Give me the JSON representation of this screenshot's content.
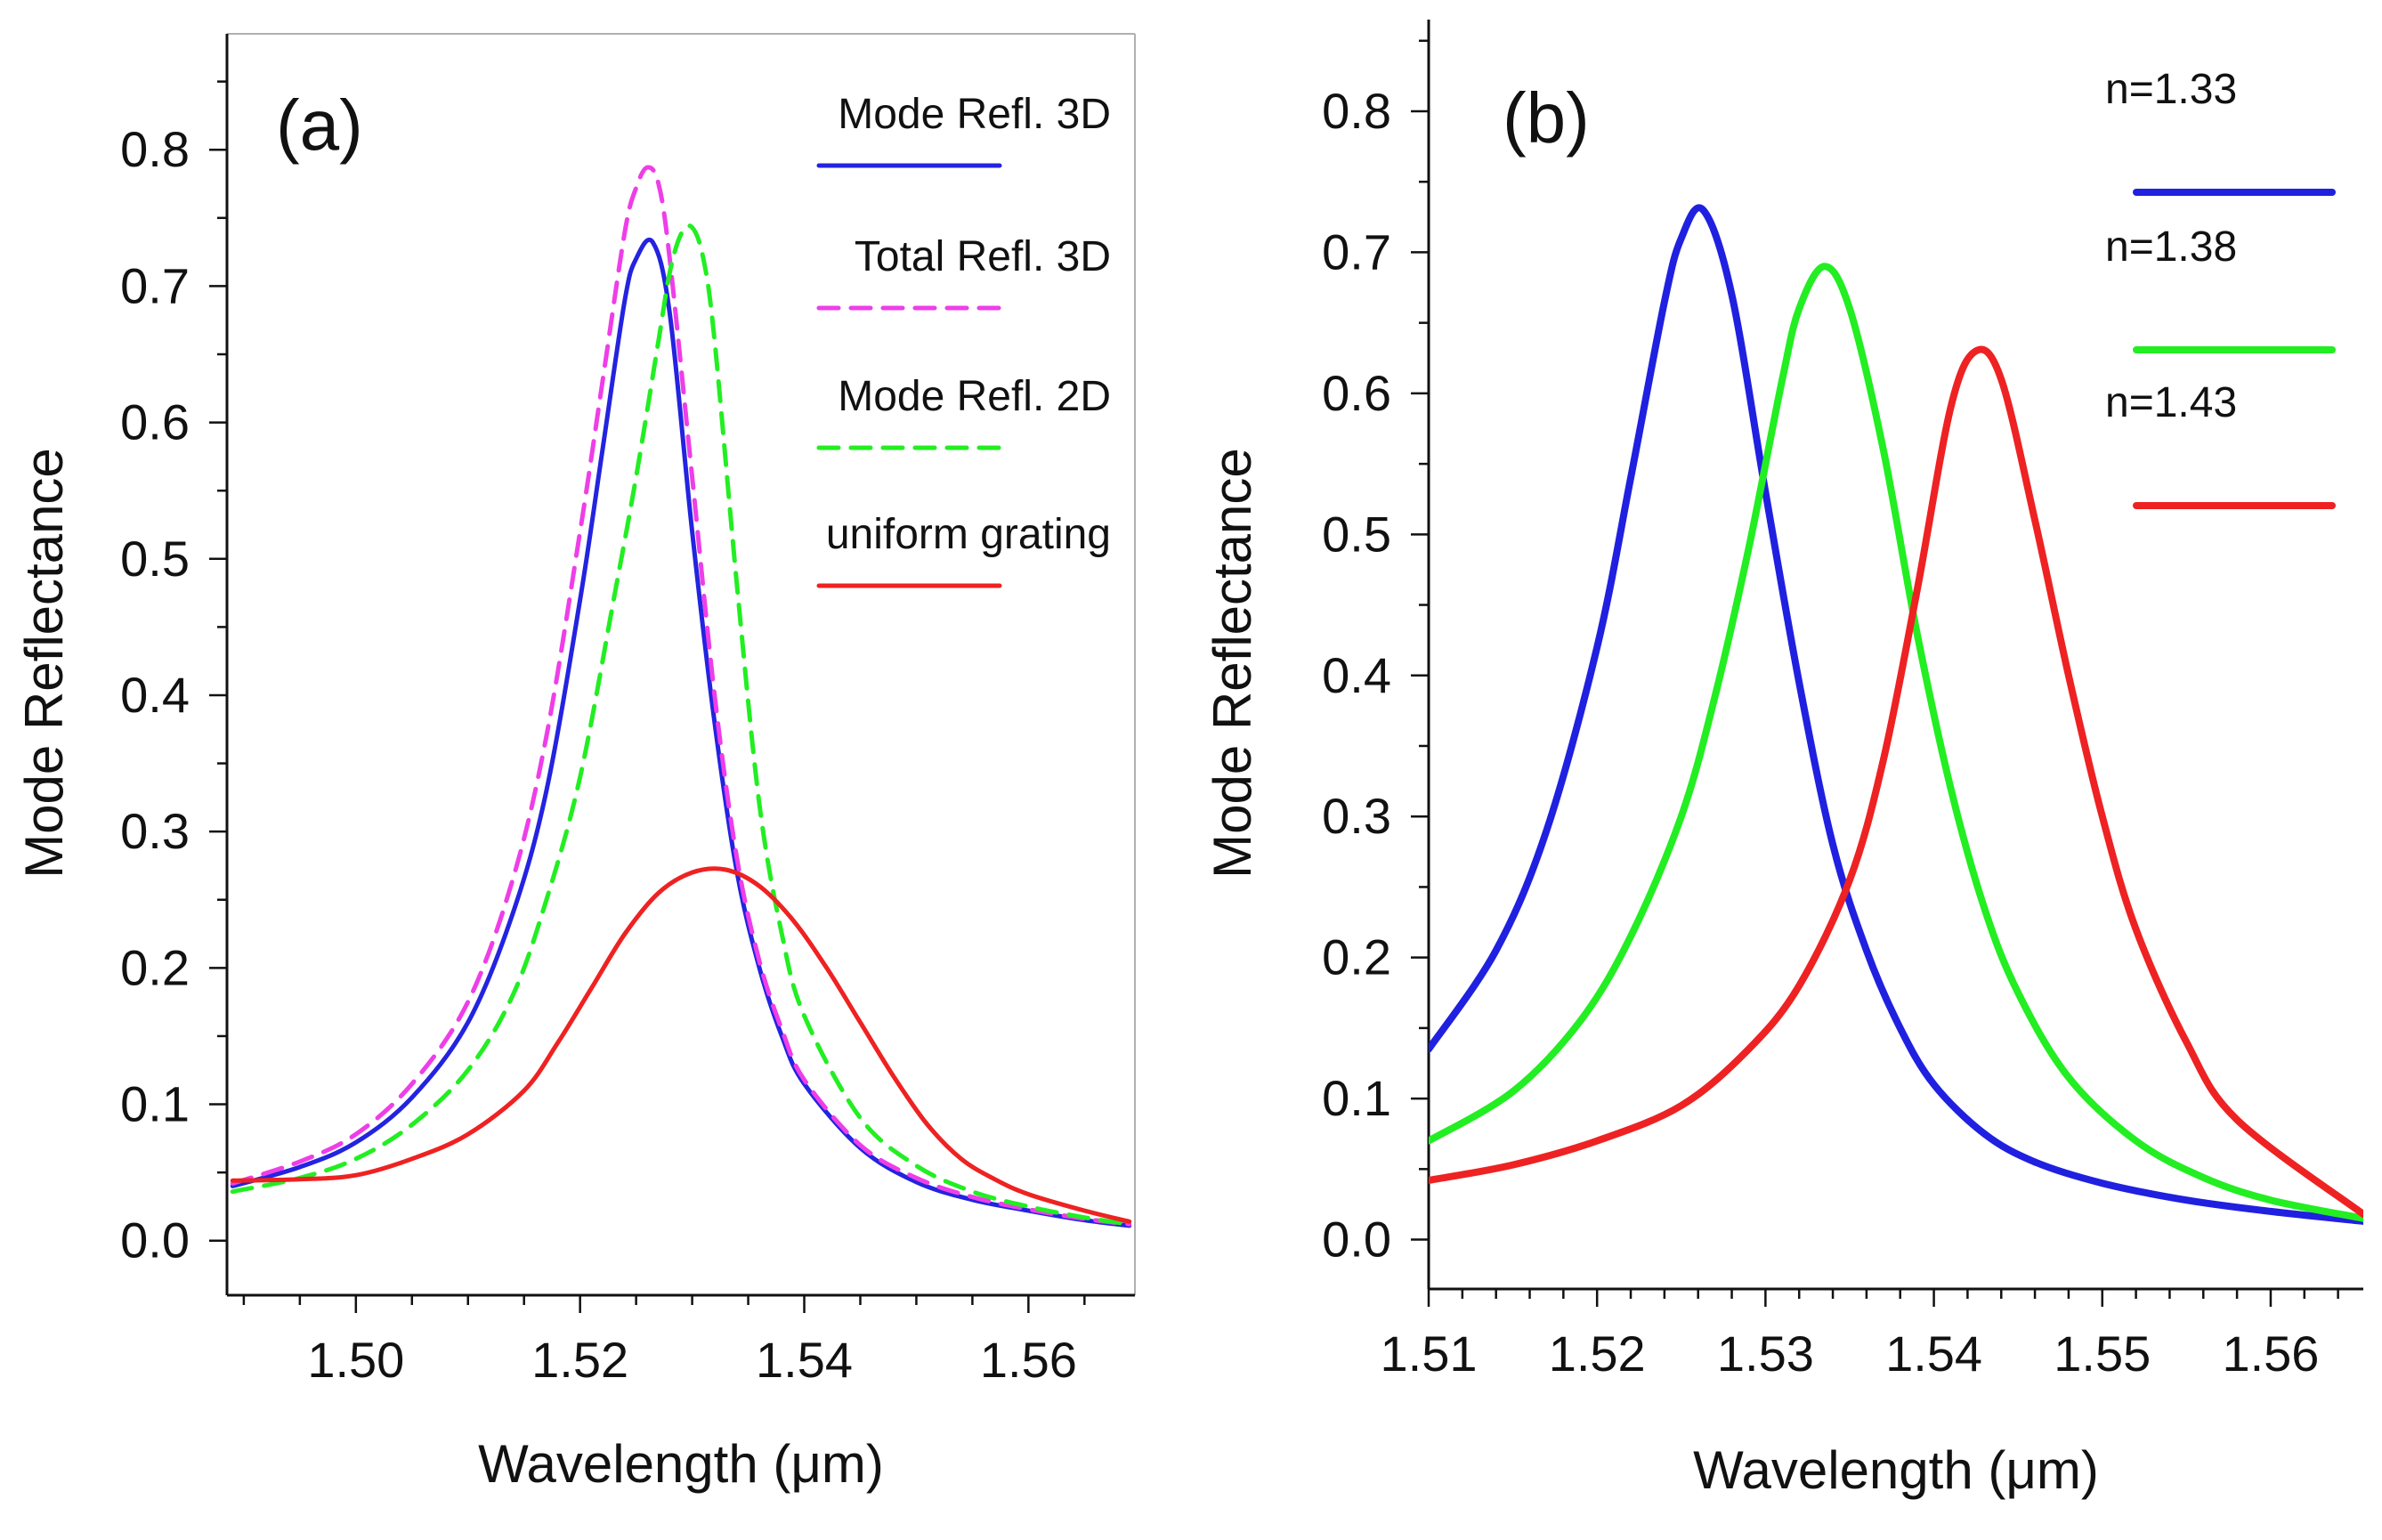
{
  "chart_data": [
    {
      "type": "line",
      "panel_label": "(a)",
      "xlabel": "Wavelength (μm)",
      "ylabel": "Mode Reflectance",
      "xlim": [
        1.4885,
        1.5695
      ],
      "ylim": [
        -0.04,
        0.885
      ],
      "xticks": [
        1.5,
        1.52,
        1.54,
        1.56
      ],
      "xtick_labels": [
        "1.50",
        "1.52",
        "1.54",
        "1.56"
      ],
      "xminor_step": 0.005,
      "yticks": [
        0.0,
        0.1,
        0.2,
        0.3,
        0.4,
        0.5,
        0.6,
        0.7,
        0.8
      ],
      "ytick_labels": [
        "0.0",
        "0.1",
        "0.2",
        "0.3",
        "0.4",
        "0.5",
        "0.6",
        "0.7",
        "0.8"
      ],
      "yminor_step": 0.05,
      "grid": false,
      "legend_position": "top-right",
      "series": [
        {
          "name": "Mode Refl. 3D",
          "color": "#2323e0",
          "dash": "solid",
          "x": [
            1.489,
            1.495,
            1.5,
            1.505,
            1.51,
            1.514,
            1.517,
            1.52,
            1.522,
            1.524,
            1.525,
            1.5265,
            1.528,
            1.53,
            1.532,
            1.534,
            1.536,
            1.538,
            1.54,
            1.545,
            1.55,
            1.555,
            1.56,
            1.565,
            1.569
          ],
          "y": [
            0.04,
            0.054,
            0.072,
            0.105,
            0.16,
            0.24,
            0.33,
            0.47,
            0.58,
            0.69,
            0.72,
            0.732,
            0.68,
            0.52,
            0.38,
            0.27,
            0.2,
            0.15,
            0.115,
            0.068,
            0.043,
            0.03,
            0.022,
            0.015,
            0.011
          ]
        },
        {
          "name": "Total Refl. 3D",
          "color": "#ee3ee8",
          "dash": "dashed",
          "x": [
            1.489,
            1.495,
            1.5,
            1.505,
            1.51,
            1.514,
            1.517,
            1.52,
            1.522,
            1.524,
            1.525,
            1.526,
            1.527,
            1.528,
            1.53,
            1.532,
            1.534,
            1.536,
            1.538,
            1.54,
            1.545,
            1.55,
            1.555,
            1.56,
            1.565,
            1.569
          ],
          "y": [
            0.042,
            0.058,
            0.078,
            0.115,
            0.175,
            0.265,
            0.37,
            0.52,
            0.63,
            0.74,
            0.772,
            0.787,
            0.775,
            0.72,
            0.56,
            0.4,
            0.28,
            0.205,
            0.155,
            0.118,
            0.07,
            0.046,
            0.032,
            0.023,
            0.016,
            0.012
          ]
        },
        {
          "name": "Mode Refl. 2D",
          "color": "#22ee22",
          "dash": "dashed",
          "x": [
            1.489,
            1.495,
            1.5,
            1.505,
            1.51,
            1.514,
            1.517,
            1.52,
            1.523,
            1.525,
            1.527,
            1.528,
            1.529,
            1.53,
            1.531,
            1.532,
            1.534,
            1.536,
            1.538,
            1.54,
            1.545,
            1.55,
            1.555,
            1.56,
            1.565,
            1.569
          ],
          "y": [
            0.036,
            0.046,
            0.06,
            0.085,
            0.125,
            0.18,
            0.25,
            0.34,
            0.47,
            0.56,
            0.66,
            0.71,
            0.738,
            0.743,
            0.72,
            0.66,
            0.48,
            0.32,
            0.225,
            0.165,
            0.09,
            0.055,
            0.036,
            0.025,
            0.017,
            0.012
          ]
        },
        {
          "name": "uniform grating",
          "color": "#ee2222",
          "dash": "solid",
          "x": [
            1.489,
            1.495,
            1.5,
            1.505,
            1.51,
            1.515,
            1.518,
            1.521,
            1.524,
            1.527,
            1.53,
            1.533,
            1.536,
            1.539,
            1.542,
            1.545,
            1.548,
            1.551,
            1.554,
            1.557,
            1.56,
            1.565,
            1.569
          ],
          "y": [
            0.044,
            0.045,
            0.048,
            0.06,
            0.078,
            0.11,
            0.145,
            0.185,
            0.225,
            0.255,
            0.27,
            0.272,
            0.26,
            0.235,
            0.2,
            0.16,
            0.12,
            0.085,
            0.06,
            0.045,
            0.034,
            0.022,
            0.014
          ]
        }
      ]
    },
    {
      "type": "line",
      "panel_label": "(b)",
      "xlabel": "Wavelength (μm)",
      "ylabel": "Mode Reflectance",
      "xlim": [
        1.51,
        1.5655
      ],
      "ylim": [
        -0.035,
        0.865
      ],
      "xticks": [
        1.51,
        1.52,
        1.53,
        1.54,
        1.55,
        1.56
      ],
      "xtick_labels": [
        "1.51",
        "1.52",
        "1.53",
        "1.54",
        "1.55",
        "1.56"
      ],
      "xminor_step": 0.002,
      "yticks": [
        0.0,
        0.1,
        0.2,
        0.3,
        0.4,
        0.5,
        0.6,
        0.7,
        0.8
      ],
      "ytick_labels": [
        "0.0",
        "0.1",
        "0.2",
        "0.3",
        "0.4",
        "0.5",
        "0.6",
        "0.7",
        "0.8"
      ],
      "yminor_step": 0.05,
      "grid": false,
      "legend_position": "top-right",
      "series": [
        {
          "name": "n=1.33",
          "color": "#2020e0",
          "dash": "solid",
          "peak_wavelength": 1.5263,
          "peak_value": 0.73,
          "half_width": 0.0044,
          "x": [
            1.51,
            1.514,
            1.517,
            1.52,
            1.522,
            1.524,
            1.525,
            1.5263,
            1.528,
            1.53,
            1.532,
            1.534,
            1.536,
            1.538,
            1.54,
            1.543,
            1.546,
            1.55,
            1.555,
            1.56,
            1.5655
          ],
          "y": [
            0.135,
            0.205,
            0.29,
            0.42,
            0.54,
            0.665,
            0.71,
            0.73,
            0.67,
            0.53,
            0.395,
            0.28,
            0.205,
            0.15,
            0.11,
            0.075,
            0.055,
            0.04,
            0.028,
            0.02,
            0.013
          ]
        },
        {
          "name": "n=1.38",
          "color": "#22ee22",
          "dash": "solid",
          "peak_wavelength": 1.5335,
          "peak_value": 0.69,
          "half_width": 0.0047,
          "x": [
            1.51,
            1.515,
            1.519,
            1.522,
            1.525,
            1.527,
            1.529,
            1.531,
            1.532,
            1.5335,
            1.535,
            1.537,
            1.539,
            1.541,
            1.543,
            1.545,
            1.548,
            1.552,
            1.556,
            1.56,
            1.5655
          ],
          "y": [
            0.07,
            0.105,
            0.155,
            0.215,
            0.3,
            0.385,
            0.49,
            0.61,
            0.66,
            0.69,
            0.66,
            0.56,
            0.43,
            0.32,
            0.235,
            0.175,
            0.115,
            0.07,
            0.044,
            0.028,
            0.015
          ]
        },
        {
          "name": "n=1.43",
          "color": "#ee2222",
          "dash": "solid",
          "peak_wavelength": 1.5425,
          "peak_value": 0.63,
          "half_width": 0.0047,
          "x": [
            1.51,
            1.515,
            1.52,
            1.525,
            1.529,
            1.532,
            1.535,
            1.537,
            1.539,
            1.541,
            1.5425,
            1.544,
            1.546,
            1.548,
            1.55,
            1.552,
            1.555,
            1.558,
            1.5655
          ],
          "y": [
            0.042,
            0.053,
            0.07,
            0.095,
            0.135,
            0.18,
            0.255,
            0.34,
            0.46,
            0.59,
            0.63,
            0.61,
            0.51,
            0.4,
            0.3,
            0.22,
            0.14,
            0.085,
            0.018
          ]
        }
      ]
    }
  ]
}
